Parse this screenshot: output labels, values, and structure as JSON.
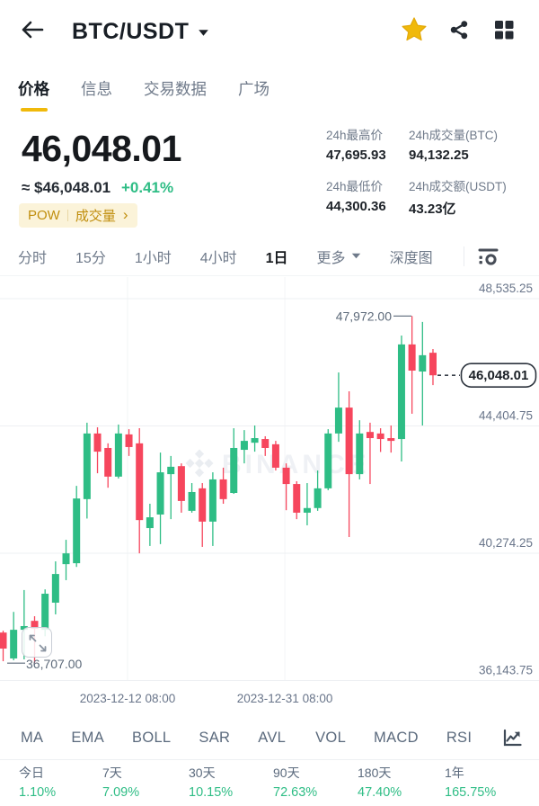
{
  "header": {
    "title": "BTC/USDT"
  },
  "nav_tabs": {
    "items": [
      {
        "label": "价格",
        "active": true
      },
      {
        "label": "信息"
      },
      {
        "label": "交易数据"
      },
      {
        "label": "广场"
      }
    ]
  },
  "price": {
    "last": "46,048.01",
    "approx": "≈ $46,048.01",
    "change_24h": "+0.41%",
    "tag_left": "POW",
    "tag_right": "成交量",
    "tag_chevron": "›"
  },
  "stats": {
    "items": [
      {
        "label": "24h最高价",
        "value": "47,695.93"
      },
      {
        "label": "24h成交量(BTC)",
        "value": "94,132.25"
      },
      {
        "label": "24h最低价",
        "value": "44,300.36"
      },
      {
        "label": "24h成交额(USDT)",
        "value": "43.23亿"
      }
    ]
  },
  "timeframes": {
    "items": [
      {
        "label": "分时"
      },
      {
        "label": "15分"
      },
      {
        "label": "1小时"
      },
      {
        "label": "4小时"
      },
      {
        "label": "1日",
        "active": true
      }
    ],
    "more_label": "更多",
    "depth_label": "深度图"
  },
  "chart_data": {
    "type": "candlestick",
    "symbol": "BTC/USDT",
    "interval": "1日",
    "colors": {
      "up": "#2EBD85",
      "down": "#F6465D"
    },
    "grid": true,
    "y_axis": {
      "ticks": [
        {
          "value": 48535.25,
          "label": "48,535.25"
        },
        {
          "value": 44404.75,
          "label": "44,404.75"
        },
        {
          "value": 40274.25,
          "label": "40,274.25"
        },
        {
          "value": 36143.75,
          "label": "36,143.75"
        }
      ]
    },
    "x_axis": {
      "ticks": [
        {
          "at": 11.87,
          "label": "2023-12-12 08:00"
        },
        {
          "at": 26.87,
          "label": "2023-12-31 08:00"
        }
      ]
    },
    "annotations": {
      "high": {
        "value": 47972.0,
        "label": "47,972.00"
      },
      "low": {
        "value": 36707.0,
        "label": "36,707.00"
      },
      "last": {
        "value": 46048.01,
        "label": "46,048.01"
      }
    },
    "watermark": "BINANCE",
    "candles": [
      [
        37700,
        37760,
        36770,
        37180
      ],
      [
        36860,
        38370,
        36800,
        37790
      ],
      [
        37790,
        39080,
        36830,
        37910
      ],
      [
        38080,
        38230,
        36707,
        37820
      ],
      [
        37790,
        39100,
        37580,
        38960
      ],
      [
        38670,
        40010,
        38290,
        39600
      ],
      [
        39920,
        40710,
        39400,
        40270
      ],
      [
        39950,
        42460,
        39830,
        42050
      ],
      [
        42030,
        44510,
        41400,
        44160
      ],
      [
        44160,
        44360,
        42870,
        43570
      ],
      [
        43690,
        43840,
        42400,
        42760
      ],
      [
        42760,
        44450,
        42700,
        44160
      ],
      [
        44130,
        44300,
        43430,
        43720
      ],
      [
        43840,
        44330,
        40270,
        41350
      ],
      [
        41090,
        41880,
        40510,
        41440
      ],
      [
        41530,
        43540,
        40570,
        42900
      ],
      [
        42840,
        43430,
        41380,
        43080
      ],
      [
        43100,
        43190,
        41590,
        41970
      ],
      [
        41650,
        42550,
        41590,
        42260
      ],
      [
        42380,
        42550,
        40480,
        41300
      ],
      [
        41300,
        42900,
        40510,
        42670
      ],
      [
        42670,
        43050,
        41880,
        42030
      ],
      [
        42230,
        44330,
        42200,
        43690
      ],
      [
        43630,
        44270,
        43190,
        43920
      ],
      [
        43860,
        44420,
        43570,
        44010
      ],
      [
        43980,
        44070,
        43430,
        43690
      ],
      [
        43810,
        43920,
        42960,
        43050
      ],
      [
        43050,
        43190,
        41670,
        42520
      ],
      [
        42520,
        42610,
        41380,
        41590
      ],
      [
        41590,
        42550,
        41180,
        41740
      ],
      [
        41740,
        42960,
        41650,
        42380
      ],
      [
        42380,
        44300,
        42320,
        44160
      ],
      [
        44160,
        46140,
        43890,
        45000
      ],
      [
        45000,
        45530,
        40800,
        42840
      ],
      [
        42840,
        44590,
        42670,
        44160
      ],
      [
        44210,
        44510,
        42520,
        44010
      ],
      [
        44160,
        44330,
        43560,
        43980
      ],
      [
        44010,
        44420,
        43540,
        43920
      ],
      [
        43980,
        47340,
        43250,
        47050
      ],
      [
        47050,
        47972,
        44800,
        46200
      ],
      [
        46170,
        47780,
        44420,
        46700
      ],
      [
        46780,
        46900,
        45730,
        46048.01
      ]
    ]
  },
  "indicators": {
    "items": [
      "MA",
      "EMA",
      "BOLL",
      "SAR",
      "AVL",
      "VOL",
      "MACD",
      "RSI"
    ]
  },
  "performance": {
    "items": [
      {
        "label": "今日",
        "value": "1.10%"
      },
      {
        "label": "7天",
        "value": "7.09%"
      },
      {
        "label": "30天",
        "value": "10.15%"
      },
      {
        "label": "90天",
        "value": "72.63%"
      },
      {
        "label": "180天",
        "value": "47.40%"
      },
      {
        "label": "1年",
        "value": "165.75%"
      }
    ]
  }
}
